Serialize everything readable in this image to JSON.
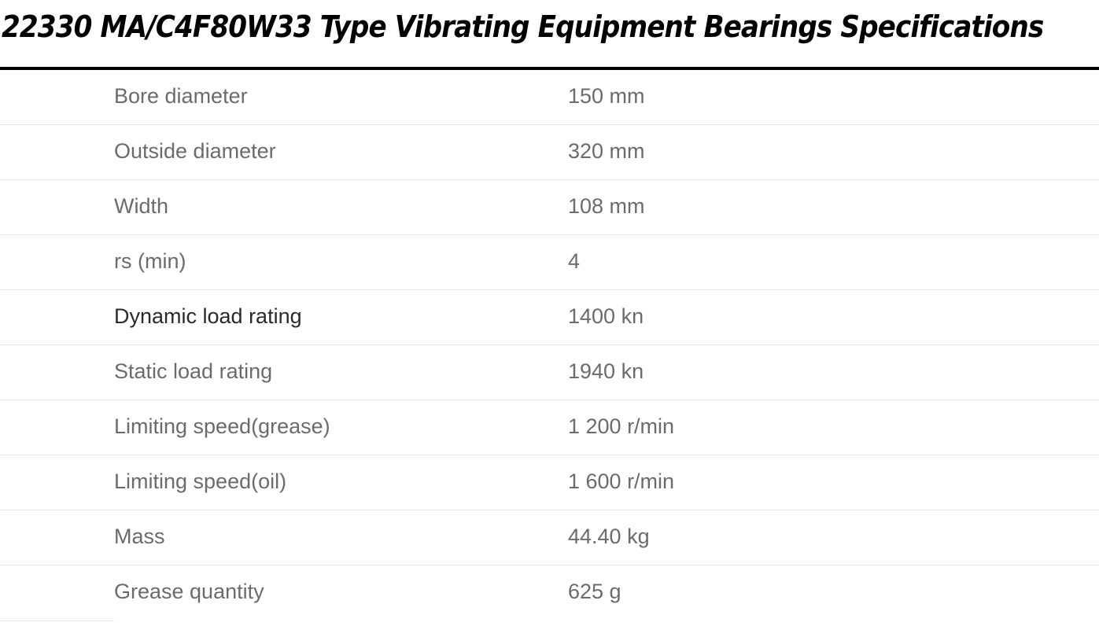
{
  "title": "22330 MA/C4F80W33 Type Vibrating Equipment Bearings Specifications",
  "specs": [
    {
      "label": "Bore diameter",
      "value": "150 mm"
    },
    {
      "label": "Outside diameter",
      "value": "320 mm"
    },
    {
      "label": "Width",
      "value": "108 mm"
    },
    {
      "label": "rs (min)",
      "value": "4"
    },
    {
      "label": "Dynamic load rating",
      "value": "1400 kn"
    },
    {
      "label": "Static load rating",
      "value": "1940 kn"
    },
    {
      "label": "Limiting speed(grease)",
      "value": "1 200 r/min"
    },
    {
      "label": "Limiting speed(oil)",
      "value": "1 600 r/min"
    },
    {
      "label": "Mass",
      "value": "44.40 kg"
    },
    {
      "label": "Grease quantity",
      "value": "625 g"
    }
  ],
  "colors": {
    "title": "#000000",
    "rule": "#000000",
    "text": "#6b6b6b",
    "divider": "#e6e6e6"
  }
}
